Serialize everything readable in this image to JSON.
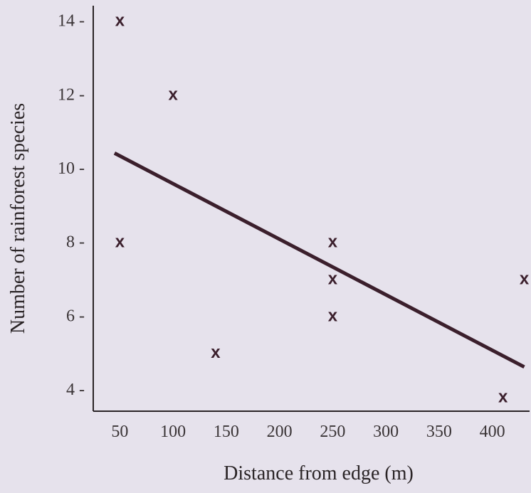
{
  "chart_data": {
    "type": "scatter",
    "title": "",
    "xlabel": "Distance from edge (m)",
    "ylabel": "Number of rainforest species",
    "x_ticks": [
      {
        "value": 50,
        "label": "50"
      },
      {
        "value": 100,
        "label": "100"
      },
      {
        "value": 150,
        "label": "150"
      },
      {
        "value": 200,
        "label": "200"
      },
      {
        "value": 250,
        "label": "250"
      },
      {
        "value": 300,
        "label": "300"
      },
      {
        "value": 350,
        "label": "350"
      },
      {
        "value": 400,
        "label": "400"
      }
    ],
    "y_ticks": [
      {
        "value": 4,
        "label": "4 -"
      },
      {
        "value": 6,
        "label": "6 -"
      },
      {
        "value": 8,
        "label": "8 -"
      },
      {
        "value": 10,
        "label": "10 -"
      },
      {
        "value": 12,
        "label": "12 -"
      },
      {
        "value": 14,
        "label": "14 -"
      }
    ],
    "xlim": [
      25,
      435
    ],
    "ylim": [
      3.4,
      14.4
    ],
    "marker": "x",
    "points": [
      {
        "x": 50,
        "y": 14
      },
      {
        "x": 100,
        "y": 12
      },
      {
        "x": 50,
        "y": 8
      },
      {
        "x": 140,
        "y": 5
      },
      {
        "x": 250,
        "y": 8
      },
      {
        "x": 250,
        "y": 7
      },
      {
        "x": 250,
        "y": 6
      },
      {
        "x": 430,
        "y": 7
      },
      {
        "x": 410,
        "y": 3.8
      }
    ],
    "trend_line": {
      "x1": 45,
      "y1": 10.4,
      "x2": 430,
      "y2": 4.6
    },
    "grid": false,
    "legend": "none",
    "colors": {
      "background": "#e6e2ec",
      "axis": "#2a2426",
      "marker": "#3b1f2c",
      "trend": "#3b1f2c"
    }
  }
}
